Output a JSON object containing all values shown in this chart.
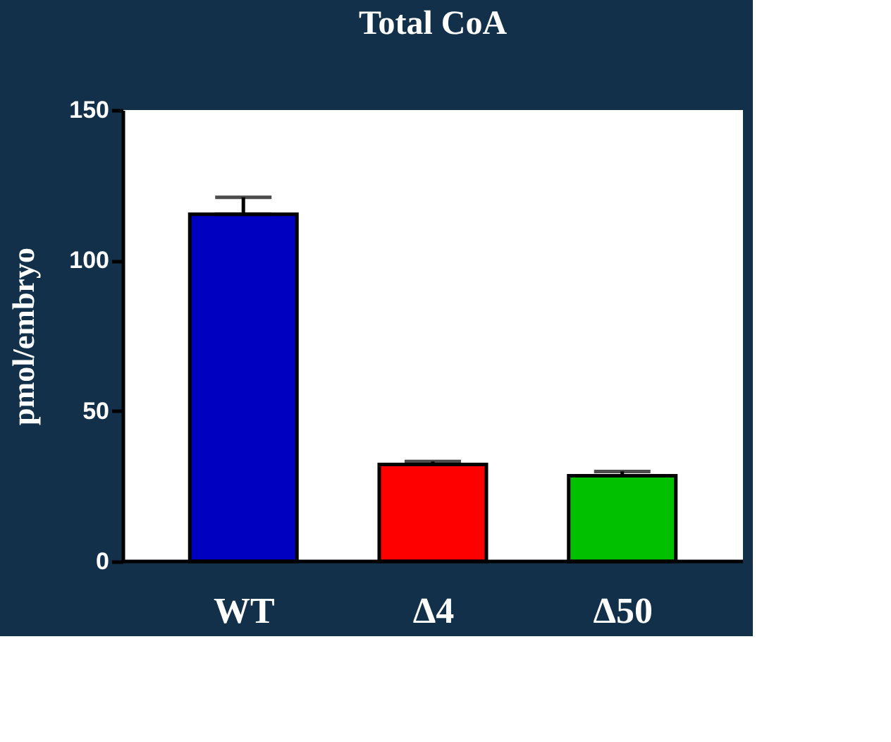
{
  "chart_data": {
    "type": "bar",
    "title": "Total CoA",
    "ylabel": "pmol/embryo",
    "categories": [
      "WT",
      "Δ4",
      "Δ50"
    ],
    "values": [
      115.4,
      32.2,
      28.5
    ],
    "errors": [
      [
        115.4,
        121.0
      ],
      [
        32.2,
        33.2
      ],
      [
        28.5,
        29.9
      ]
    ],
    "colors": [
      "#0000c0",
      "#ff0000",
      "#00c000"
    ],
    "ylim": [
      0,
      150
    ],
    "yticks": [
      0,
      50,
      100,
      150
    ],
    "grid": false
  }
}
